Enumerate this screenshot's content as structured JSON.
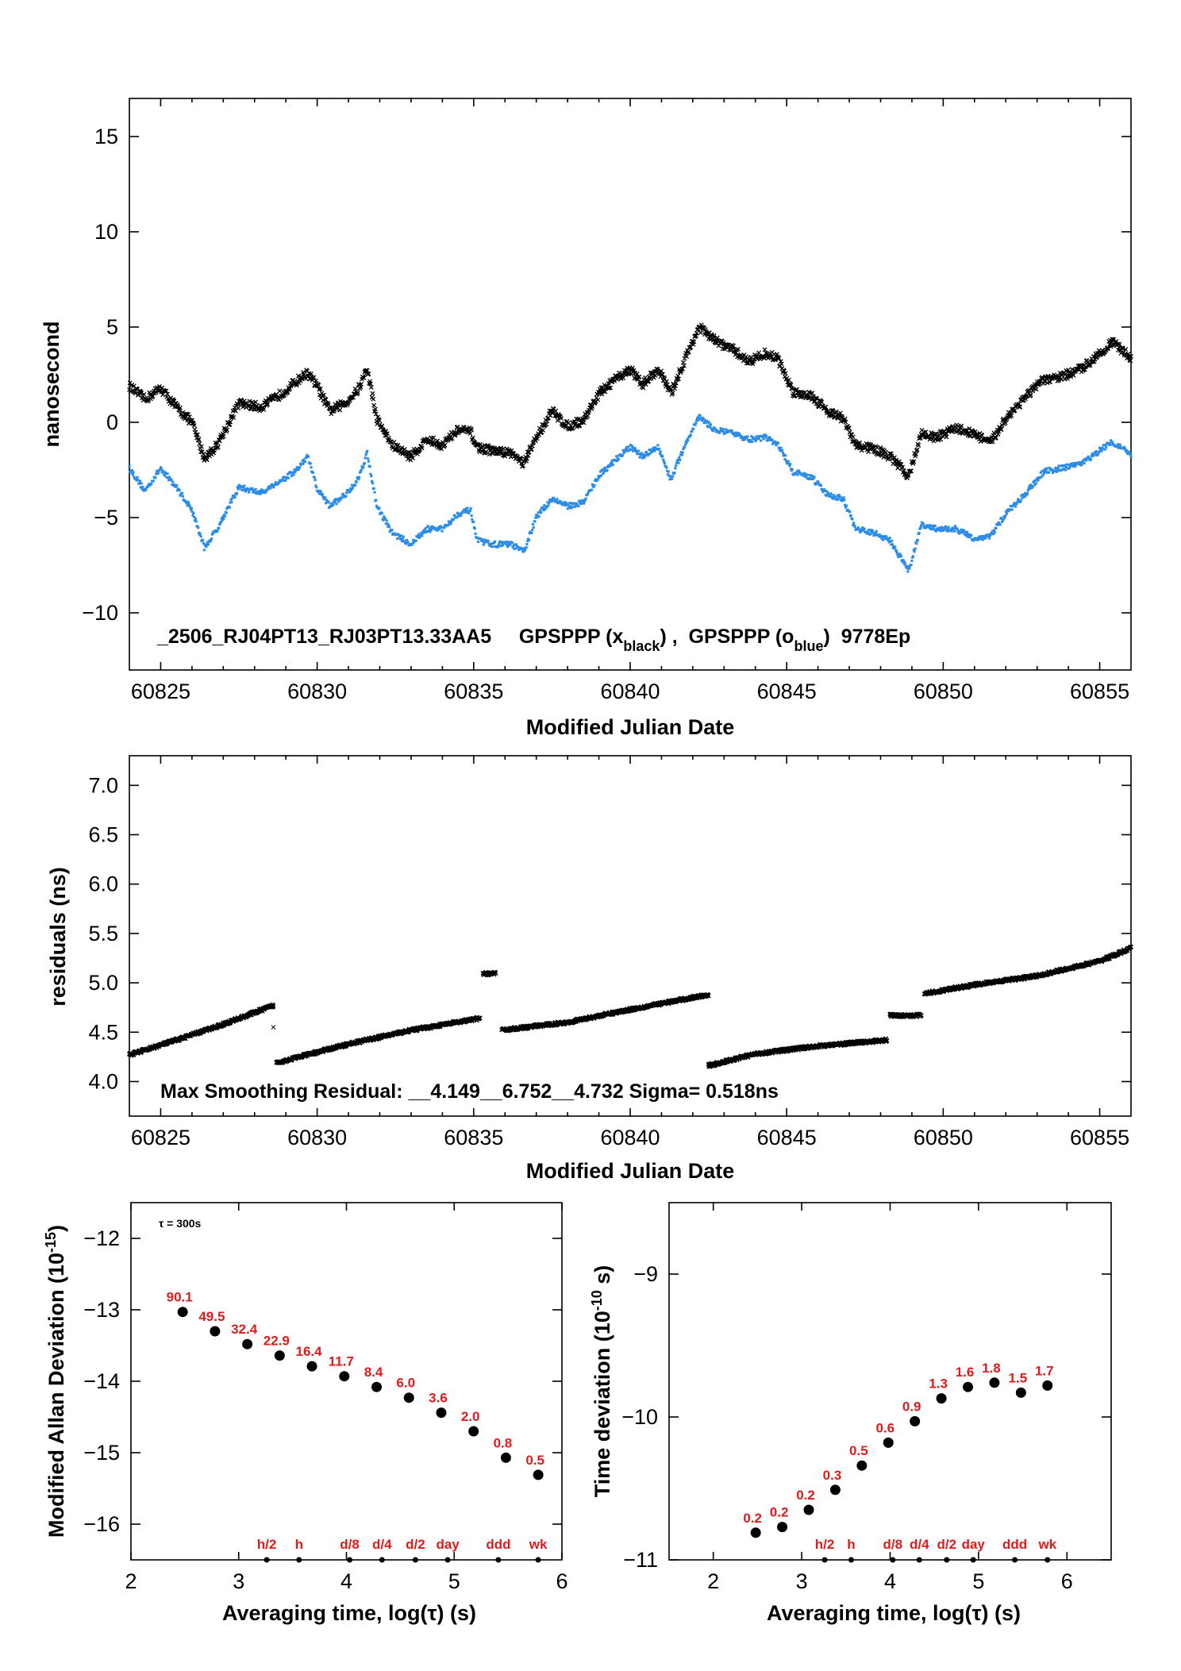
{
  "colors": {
    "black_series": "#000000",
    "blue_series": "#2b8ce8",
    "label_red": "#e31a1c"
  },
  "chart_data": [
    {
      "type": "scatter",
      "panel": "phase",
      "ylabel": "nanosecond",
      "xlabel": "Modified Julian Date",
      "xlim": [
        60824,
        60856
      ],
      "ylim": [
        -13,
        17
      ],
      "xticks": [
        60825,
        60830,
        60835,
        60840,
        60845,
        60850,
        60855
      ],
      "yticks": [
        -10,
        -5,
        0,
        5,
        10,
        15
      ],
      "ytick_labels": [
        "−10",
        "−5",
        "0",
        "5",
        "10",
        "15"
      ],
      "annotation": {
        "prefix": "_2506_RJ04PT13_RJ03PT13.33AA5     GPSPPP (x",
        "sub1": "black",
        "middle": ") ,  GPSPPP (o",
        "sub2": "blue",
        "suffix": ")  9778Ep"
      },
      "series": [
        {
          "marker": "x",
          "color": "#000000",
          "x": [
            60824,
            60824.5,
            60825,
            60825.5,
            60826,
            60826.4,
            60826.8,
            60827.5,
            60828.2,
            60828.7,
            60829.3,
            60829.7,
            60830.0,
            60830.4,
            60830.9,
            60831.3,
            60831.6,
            60831.9,
            60832.4,
            60833.0,
            60833.5,
            60834.0,
            60834.5,
            60834.9,
            60835.1,
            60835.6,
            60836.2,
            60836.6,
            60837.0,
            60837.5,
            60838.0,
            60838.5,
            60839.0,
            60839.5,
            60840.0,
            60840.4,
            60840.9,
            60841.3,
            60841.8,
            60842.2,
            60842.7,
            60843.3,
            60843.8,
            60844.3,
            60844.7,
            60845.2,
            60845.8,
            60846.3,
            60846.8,
            60847.2,
            60847.8,
            60848.3,
            60848.9,
            60849.3,
            60849.8,
            60850.4,
            60851.0,
            60851.5,
            60852.0,
            60852.6,
            60853.2,
            60853.8,
            60854.4,
            60854.9,
            60855.4,
            60856
          ],
          "y": [
            1.9,
            1.2,
            1.8,
            0.8,
            0.0,
            -1.9,
            -1.2,
            1.0,
            0.8,
            1.3,
            2.1,
            2.6,
            1.9,
            0.6,
            1.0,
            1.7,
            2.8,
            0.2,
            -1.2,
            -1.8,
            -0.9,
            -1.2,
            -0.4,
            -0.5,
            -1.3,
            -1.5,
            -1.6,
            -2.2,
            -0.8,
            0.6,
            -0.2,
            0.1,
            1.5,
            2.2,
            2.8,
            2.0,
            2.8,
            1.5,
            3.5,
            5.0,
            4.3,
            3.8,
            3.2,
            3.6,
            3.4,
            1.6,
            1.4,
            0.6,
            0.2,
            -1.2,
            -1.4,
            -1.8,
            -2.8,
            -0.6,
            -0.8,
            -0.3,
            -0.6,
            -1.1,
            0.2,
            1.3,
            2.2,
            2.4,
            2.8,
            3.5,
            4.2,
            3.4
          ]
        },
        {
          "marker": "o",
          "color": "#2b8ce8",
          "x": [
            60824,
            60824.5,
            60825,
            60825.5,
            60826,
            60826.4,
            60826.8,
            60827.5,
            60828.2,
            60828.7,
            60829.3,
            60829.7,
            60830.0,
            60830.4,
            60830.9,
            60831.3,
            60831.6,
            60831.9,
            60832.4,
            60833.0,
            60833.5,
            60834.0,
            60834.5,
            60834.9,
            60835.1,
            60835.6,
            60836.2,
            60836.6,
            60837.0,
            60837.5,
            60838.0,
            60838.5,
            60839.0,
            60839.5,
            60840.0,
            60840.4,
            60840.9,
            60841.3,
            60841.8,
            60842.2,
            60842.7,
            60843.3,
            60843.8,
            60844.3,
            60844.7,
            60845.2,
            60845.8,
            60846.3,
            60846.8,
            60847.2,
            60847.8,
            60848.3,
            60848.9,
            60849.3,
            60849.8,
            60850.4,
            60851.0,
            60851.5,
            60852.0,
            60852.6,
            60853.2,
            60853.8,
            60854.4,
            60854.9,
            60855.4,
            60856
          ],
          "y": [
            -2.4,
            -3.6,
            -2.4,
            -3.4,
            -4.6,
            -6.6,
            -5.6,
            -3.4,
            -3.7,
            -3.2,
            -2.6,
            -1.8,
            -3.5,
            -4.4,
            -3.8,
            -3.0,
            -1.6,
            -4.4,
            -5.8,
            -6.4,
            -5.6,
            -5.6,
            -4.8,
            -4.6,
            -6.2,
            -6.4,
            -6.4,
            -6.8,
            -5.0,
            -4.0,
            -4.4,
            -4.2,
            -2.8,
            -2.0,
            -1.3,
            -1.8,
            -1.3,
            -3.0,
            -1.0,
            0.3,
            -0.4,
            -0.6,
            -0.9,
            -0.8,
            -1.1,
            -2.6,
            -2.9,
            -3.8,
            -4.0,
            -5.6,
            -5.8,
            -6.2,
            -7.8,
            -5.4,
            -5.6,
            -5.6,
            -6.1,
            -6.0,
            -4.8,
            -3.8,
            -2.6,
            -2.4,
            -2.2,
            -1.6,
            -1.0,
            -1.7
          ]
        }
      ]
    },
    {
      "type": "scatter",
      "panel": "residuals",
      "ylabel": "residuals (ns)",
      "xlabel": "Modified Julian Date",
      "xlim": [
        60824,
        60856
      ],
      "ylim": [
        3.65,
        7.3
      ],
      "xticks": [
        60825,
        60830,
        60835,
        60840,
        60845,
        60850,
        60855
      ],
      "yticks": [
        4.0,
        4.5,
        5.0,
        5.5,
        6.0,
        6.5,
        7.0
      ],
      "ytick_labels": [
        "4.0",
        "4.5",
        "5.0",
        "5.5",
        "6.0",
        "6.5",
        "7.0"
      ],
      "annotation": "Max Smoothing Residual: __4.149__6.752__4.732  Sigma= 0.518ns",
      "segments": [
        {
          "x": [
            60824,
            60825.5,
            60827,
            60828.6
          ],
          "y": [
            4.27,
            4.42,
            4.58,
            4.77
          ]
        },
        {
          "x": [
            60828.7,
            60831,
            60833,
            60835.2
          ],
          "y": [
            4.19,
            4.38,
            4.52,
            4.64
          ]
        },
        {
          "x": [
            60835.3,
            60835.7
          ],
          "y": [
            5.09,
            5.1
          ]
        },
        {
          "x": [
            60835.9,
            60838,
            60840,
            60842.5
          ],
          "y": [
            4.52,
            4.6,
            4.73,
            4.88
          ]
        },
        {
          "x": [
            60842.5,
            60844,
            60846,
            60848.2
          ],
          "y": [
            4.16,
            4.28,
            4.36,
            4.42
          ]
        },
        {
          "x": [
            60848.3,
            60849.3
          ],
          "y": [
            4.67,
            4.67
          ]
        },
        {
          "x": [
            60849.4,
            60851,
            60853,
            60855,
            60856
          ],
          "y": [
            4.89,
            4.98,
            5.07,
            5.22,
            5.35
          ]
        }
      ],
      "outliers": [
        {
          "x": 60828.6,
          "y": 4.55
        },
        {
          "x": 60845.0,
          "y": 4.33
        }
      ]
    },
    {
      "type": "scatter",
      "panel": "mdev",
      "ylabel": "Modified Allan Deviation (10",
      "ylabel_sup": "-15",
      "ylabel_end": ")",
      "xlabel": "Averaging time, log(τ) (s)",
      "xlim": [
        2,
        6
      ],
      "ylim": [
        -16.5,
        -11.5
      ],
      "xticks": [
        2,
        3,
        4,
        5,
        6
      ],
      "yticks": [
        -16,
        -15,
        -14,
        -13,
        -12
      ],
      "ytick_labels": [
        "−16",
        "−15",
        "−14",
        "−13",
        "−12"
      ],
      "tau_note": "τ = 300s",
      "x": [
        2.48,
        2.78,
        3.08,
        3.38,
        3.68,
        3.98,
        4.28,
        4.58,
        4.88,
        5.18,
        5.48,
        5.78
      ],
      "y": [
        -13.03,
        -13.3,
        -13.48,
        -13.64,
        -13.79,
        -13.93,
        -14.08,
        -14.23,
        -14.44,
        -14.7,
        -15.07,
        -15.31
      ],
      "point_labels": [
        "90.1",
        "49.5",
        "32.4",
        "22.9",
        "16.4",
        "11.7",
        "8.4",
        "6.0",
        "3.6",
        "2.0",
        "0.8",
        "0.5"
      ],
      "markers": [
        {
          "label": "h/2",
          "x": 3.26
        },
        {
          "label": "h",
          "x": 3.56
        },
        {
          "label": "d/8",
          "x": 4.03
        },
        {
          "label": "d/4",
          "x": 4.33
        },
        {
          "label": "d/2",
          "x": 4.64
        },
        {
          "label": "day",
          "x": 4.94
        },
        {
          "label": "ddd",
          "x": 5.41
        },
        {
          "label": "wk",
          "x": 5.78
        }
      ]
    },
    {
      "type": "scatter",
      "panel": "tdev",
      "ylabel": "Time deviation (10",
      "ylabel_sup": "-10",
      "ylabel_end": " s)",
      "xlabel": "Averaging time, log(τ) (s)",
      "xlim": [
        1.5,
        6.5
      ],
      "ylim": [
        -11,
        -8.5
      ],
      "xticks": [
        2,
        3,
        4,
        5,
        6
      ],
      "yticks": [
        -11,
        -10,
        -9
      ],
      "ytick_labels": [
        "−11",
        "−10",
        "−9"
      ],
      "x": [
        2.48,
        2.78,
        3.08,
        3.38,
        3.68,
        3.98,
        4.28,
        4.58,
        4.88,
        5.18,
        5.48,
        5.78
      ],
      "y": [
        -10.81,
        -10.77,
        -10.65,
        -10.51,
        -10.34,
        -10.18,
        -10.03,
        -9.87,
        -9.79,
        -9.76,
        -9.83,
        -9.78
      ],
      "point_labels": [
        "0.2",
        "0.2",
        "0.2",
        "0.3",
        "0.5",
        "0.6",
        "0.9",
        "1.3",
        "1.6",
        "1.8",
        "1.5",
        "1.7"
      ],
      "markers": [
        {
          "label": "h/2",
          "x": 3.26
        },
        {
          "label": "h",
          "x": 3.56
        },
        {
          "label": "d/8",
          "x": 4.03
        },
        {
          "label": "d/4",
          "x": 4.33
        },
        {
          "label": "d/2",
          "x": 4.64
        },
        {
          "label": "day",
          "x": 4.94
        },
        {
          "label": "ddd",
          "x": 5.41
        },
        {
          "label": "wk",
          "x": 5.78
        }
      ]
    }
  ]
}
